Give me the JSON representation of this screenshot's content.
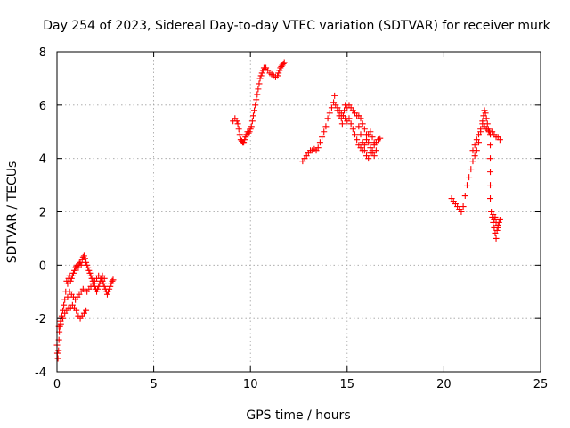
{
  "chart_data": {
    "type": "scatter",
    "title": "Day 254 of 2023, Sidereal Day-to-day VTEC variation (SDTVAR) for receiver murk",
    "xlabel": "GPS time / hours",
    "ylabel": "SDTVAR / TECUs",
    "xlim": [
      0,
      25
    ],
    "ylim": [
      -4,
      8
    ],
    "xticks": [
      0,
      5,
      10,
      15,
      20,
      25
    ],
    "yticks": [
      -4,
      -2,
      0,
      2,
      4,
      6,
      8
    ],
    "xtick_labels": [
      "0",
      "5",
      "10",
      "15",
      "20",
      "25"
    ],
    "ytick_labels": [
      "-4",
      "-2",
      "0",
      "2",
      "4",
      "6",
      "8"
    ],
    "grid": true,
    "marker": "+",
    "color": "#ff0000",
    "series": [
      {
        "name": "SDTVAR",
        "points": [
          [
            0.0,
            -3.0
          ],
          [
            0.02,
            -3.3
          ],
          [
            0.05,
            -3.5
          ],
          [
            0.08,
            -3.2
          ],
          [
            0.1,
            -2.8
          ],
          [
            0.12,
            -2.5
          ],
          [
            0.15,
            -2.3
          ],
          [
            0.18,
            -2.1
          ],
          [
            0.22,
            -2.0
          ],
          [
            0.25,
            -1.9
          ],
          [
            0.3,
            -1.7
          ],
          [
            0.35,
            -1.5
          ],
          [
            0.4,
            -1.3
          ],
          [
            0.45,
            -1.0
          ],
          [
            0.5,
            -0.6
          ],
          [
            0.55,
            -0.7
          ],
          [
            0.6,
            -0.5
          ],
          [
            0.65,
            -0.4
          ],
          [
            0.7,
            -0.6
          ],
          [
            0.75,
            -0.5
          ],
          [
            0.8,
            -0.4
          ],
          [
            0.85,
            -0.3
          ],
          [
            0.9,
            -0.2
          ],
          [
            0.95,
            -0.1
          ],
          [
            1.0,
            -0.05
          ],
          [
            1.05,
            0.0
          ],
          [
            1.1,
            -0.1
          ],
          [
            1.15,
            0.05
          ],
          [
            1.2,
            0.1
          ],
          [
            1.25,
            0.0
          ],
          [
            1.3,
            0.2
          ],
          [
            1.35,
            0.3
          ],
          [
            1.4,
            0.35
          ],
          [
            1.45,
            0.25
          ],
          [
            1.5,
            0.1
          ],
          [
            1.55,
            0.0
          ],
          [
            1.6,
            -0.1
          ],
          [
            1.65,
            -0.2
          ],
          [
            1.7,
            -0.3
          ],
          [
            1.75,
            -0.4
          ],
          [
            1.8,
            -0.5
          ],
          [
            1.85,
            -0.6
          ],
          [
            1.9,
            -0.7
          ],
          [
            1.95,
            -0.8
          ],
          [
            2.0,
            -0.9
          ],
          [
            2.05,
            -1.0
          ],
          [
            2.1,
            -0.9
          ],
          [
            2.15,
            -0.8
          ],
          [
            2.2,
            -0.7
          ],
          [
            2.25,
            -0.6
          ],
          [
            2.3,
            -0.5
          ],
          [
            2.35,
            -0.6
          ],
          [
            2.4,
            -0.7
          ],
          [
            2.45,
            -0.8
          ],
          [
            2.5,
            -0.9
          ],
          [
            2.55,
            -1.0
          ],
          [
            2.6,
            -1.1
          ],
          [
            2.65,
            -1.0
          ],
          [
            2.7,
            -0.9
          ],
          [
            2.75,
            -0.8
          ],
          [
            2.8,
            -0.7
          ],
          [
            2.85,
            -0.6
          ],
          [
            2.9,
            -0.55
          ],
          [
            0.1,
            -2.3
          ],
          [
            0.2,
            -2.2
          ],
          [
            0.3,
            -2.0
          ],
          [
            0.4,
            -1.8
          ],
          [
            0.5,
            -1.7
          ],
          [
            0.6,
            -1.6
          ],
          [
            0.7,
            -1.6
          ],
          [
            0.8,
            -1.5
          ],
          [
            0.9,
            -1.6
          ],
          [
            1.0,
            -1.7
          ],
          [
            1.1,
            -1.9
          ],
          [
            1.2,
            -2.0
          ],
          [
            1.3,
            -1.9
          ],
          [
            1.4,
            -1.8
          ],
          [
            1.5,
            -1.7
          ],
          [
            0.55,
            -1.2
          ],
          [
            0.65,
            -1.0
          ],
          [
            0.75,
            -1.1
          ],
          [
            0.85,
            -1.2
          ],
          [
            0.95,
            -1.3
          ],
          [
            1.05,
            -1.2
          ],
          [
            1.15,
            -1.1
          ],
          [
            1.25,
            -1.0
          ],
          [
            1.35,
            -0.9
          ],
          [
            1.45,
            -0.95
          ],
          [
            1.55,
            -1.0
          ],
          [
            1.65,
            -0.9
          ],
          [
            1.75,
            -0.8
          ],
          [
            1.85,
            -0.7
          ],
          [
            1.95,
            -0.6
          ],
          [
            2.05,
            -0.5
          ],
          [
            2.15,
            -0.4
          ],
          [
            2.25,
            -0.5
          ],
          [
            2.35,
            -0.4
          ],
          [
            2.45,
            -0.5
          ],
          [
            9.1,
            5.4
          ],
          [
            9.2,
            5.5
          ],
          [
            9.3,
            5.4
          ],
          [
            9.35,
            5.3
          ],
          [
            9.4,
            5.1
          ],
          [
            9.45,
            4.9
          ],
          [
            9.5,
            4.7
          ],
          [
            9.55,
            4.65
          ],
          [
            9.6,
            4.6
          ],
          [
            9.65,
            4.6
          ],
          [
            9.7,
            4.7
          ],
          [
            9.75,
            4.8
          ],
          [
            9.8,
            4.9
          ],
          [
            9.85,
            5.0
          ],
          [
            9.9,
            4.95
          ],
          [
            9.95,
            5.0
          ],
          [
            10.0,
            5.1
          ],
          [
            10.05,
            5.2
          ],
          [
            10.1,
            5.4
          ],
          [
            10.15,
            5.6
          ],
          [
            10.2,
            5.8
          ],
          [
            10.25,
            6.0
          ],
          [
            10.3,
            6.2
          ],
          [
            10.35,
            6.4
          ],
          [
            10.4,
            6.6
          ],
          [
            10.45,
            6.8
          ],
          [
            10.5,
            7.0
          ],
          [
            10.55,
            7.1
          ],
          [
            10.6,
            7.2
          ],
          [
            10.65,
            7.3
          ],
          [
            10.7,
            7.4
          ],
          [
            10.75,
            7.35
          ],
          [
            10.8,
            7.4
          ],
          [
            10.9,
            7.3
          ],
          [
            11.0,
            7.2
          ],
          [
            11.1,
            7.15
          ],
          [
            11.2,
            7.1
          ],
          [
            11.3,
            7.05
          ],
          [
            11.4,
            7.1
          ],
          [
            11.45,
            7.2
          ],
          [
            11.5,
            7.3
          ],
          [
            11.55,
            7.4
          ],
          [
            11.6,
            7.45
          ],
          [
            11.65,
            7.5
          ],
          [
            11.7,
            7.55
          ],
          [
            11.75,
            7.6
          ],
          [
            12.7,
            3.9
          ],
          [
            12.8,
            4.0
          ],
          [
            12.9,
            4.1
          ],
          [
            13.0,
            4.2
          ],
          [
            13.1,
            4.3
          ],
          [
            13.2,
            4.3
          ],
          [
            13.3,
            4.35
          ],
          [
            13.4,
            4.3
          ],
          [
            13.5,
            4.4
          ],
          [
            13.6,
            4.6
          ],
          [
            13.7,
            4.8
          ],
          [
            13.8,
            5.0
          ],
          [
            13.9,
            5.2
          ],
          [
            14.0,
            5.5
          ],
          [
            14.1,
            5.7
          ],
          [
            14.2,
            5.9
          ],
          [
            14.3,
            6.1
          ],
          [
            14.35,
            6.35
          ],
          [
            14.4,
            6.0
          ],
          [
            14.5,
            5.8
          ],
          [
            14.6,
            5.6
          ],
          [
            14.7,
            5.5
          ],
          [
            14.75,
            5.3
          ],
          [
            14.8,
            5.6
          ],
          [
            14.85,
            5.8
          ],
          [
            14.9,
            6.0
          ],
          [
            15.0,
            5.9
          ],
          [
            15.1,
            6.0
          ],
          [
            15.2,
            5.9
          ],
          [
            15.3,
            5.8
          ],
          [
            15.4,
            5.7
          ],
          [
            15.5,
            5.6
          ],
          [
            15.6,
            5.2
          ],
          [
            15.7,
            4.9
          ],
          [
            15.8,
            4.6
          ],
          [
            15.9,
            4.3
          ],
          [
            16.0,
            4.1
          ],
          [
            16.1,
            4.0
          ],
          [
            16.2,
            4.2
          ],
          [
            16.3,
            4.3
          ],
          [
            16.4,
            4.5
          ],
          [
            16.5,
            4.6
          ],
          [
            16.6,
            4.7
          ],
          [
            16.7,
            4.75
          ],
          [
            14.5,
            5.9
          ],
          [
            14.6,
            5.8
          ],
          [
            14.7,
            5.7
          ],
          [
            14.8,
            5.6
          ],
          [
            14.9,
            5.5
          ],
          [
            15.0,
            5.4
          ],
          [
            15.1,
            5.5
          ],
          [
            15.2,
            5.3
          ],
          [
            15.3,
            5.1
          ],
          [
            15.4,
            4.9
          ],
          [
            15.5,
            4.7
          ],
          [
            15.6,
            4.5
          ],
          [
            15.7,
            4.4
          ],
          [
            15.8,
            4.3
          ],
          [
            15.9,
            4.5
          ],
          [
            16.0,
            4.7
          ],
          [
            16.1,
            4.9
          ],
          [
            16.2,
            5.0
          ],
          [
            16.3,
            4.8
          ],
          [
            16.4,
            4.6
          ],
          [
            15.6,
            5.6
          ],
          [
            15.7,
            5.5
          ],
          [
            15.8,
            5.3
          ],
          [
            15.9,
            5.1
          ],
          [
            16.0,
            4.9
          ],
          [
            16.1,
            4.6
          ],
          [
            16.2,
            4.4
          ],
          [
            16.3,
            4.2
          ],
          [
            16.4,
            4.1
          ],
          [
            16.5,
            4.3
          ],
          [
            20.4,
            2.5
          ],
          [
            20.5,
            2.4
          ],
          [
            20.6,
            2.3
          ],
          [
            20.7,
            2.2
          ],
          [
            20.8,
            2.1
          ],
          [
            20.9,
            2.0
          ],
          [
            21.0,
            2.2
          ],
          [
            21.1,
            2.6
          ],
          [
            21.2,
            3.0
          ],
          [
            21.3,
            3.3
          ],
          [
            21.4,
            3.6
          ],
          [
            21.5,
            3.9
          ],
          [
            21.6,
            4.1
          ],
          [
            21.7,
            4.3
          ],
          [
            21.8,
            4.6
          ],
          [
            21.9,
            5.0
          ],
          [
            22.0,
            5.4
          ],
          [
            22.05,
            5.6
          ],
          [
            22.1,
            5.8
          ],
          [
            22.15,
            5.7
          ],
          [
            22.2,
            5.5
          ],
          [
            22.25,
            5.3
          ],
          [
            22.3,
            5.1
          ],
          [
            22.35,
            5.0
          ],
          [
            22.4,
            4.9
          ],
          [
            22.5,
            5.0
          ],
          [
            22.6,
            4.9
          ],
          [
            22.7,
            4.8
          ],
          [
            22.8,
            4.8
          ],
          [
            22.9,
            4.7
          ],
          [
            21.5,
            4.3
          ],
          [
            21.6,
            4.5
          ],
          [
            21.7,
            4.7
          ],
          [
            21.8,
            4.9
          ],
          [
            21.9,
            5.1
          ],
          [
            22.0,
            5.3
          ],
          [
            22.1,
            5.2
          ],
          [
            22.2,
            5.1
          ],
          [
            22.3,
            5.05
          ],
          [
            22.4,
            4.5
          ],
          [
            22.4,
            4.0
          ],
          [
            22.4,
            3.5
          ],
          [
            22.4,
            3.0
          ],
          [
            22.4,
            2.5
          ],
          [
            22.45,
            2.0
          ],
          [
            22.5,
            1.8
          ],
          [
            22.55,
            1.6
          ],
          [
            22.6,
            1.4
          ],
          [
            22.65,
            1.2
          ],
          [
            22.7,
            1.0
          ],
          [
            22.75,
            1.3
          ],
          [
            22.8,
            1.5
          ],
          [
            22.85,
            1.6
          ],
          [
            22.9,
            1.7
          ],
          [
            22.6,
            1.7
          ],
          [
            22.7,
            1.6
          ],
          [
            22.8,
            1.4
          ],
          [
            22.55,
            1.9
          ],
          [
            22.65,
            1.8
          ]
        ]
      }
    ]
  }
}
